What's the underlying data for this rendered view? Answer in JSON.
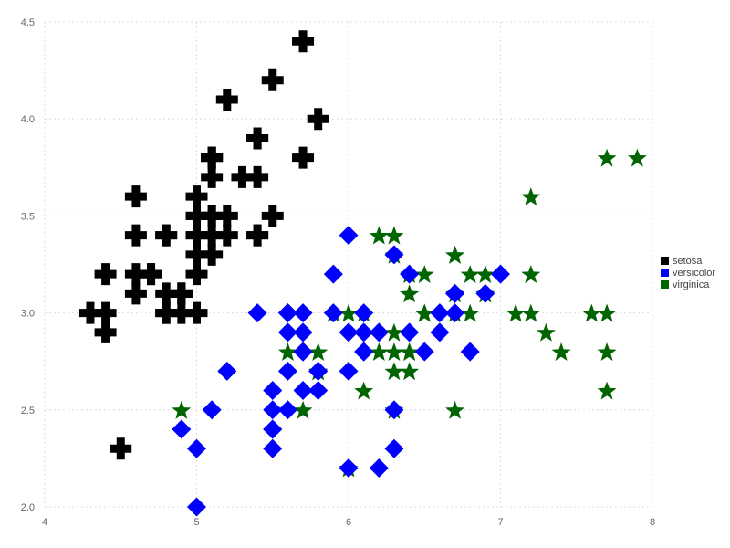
{
  "chart_data": {
    "type": "scatter",
    "title": "",
    "xlabel": "",
    "ylabel": "",
    "xlim": [
      4,
      8
    ],
    "ylim": [
      2.0,
      4.5
    ],
    "x_ticks": [
      "4",
      "5",
      "6",
      "7",
      "8"
    ],
    "y_ticks": [
      "2.0",
      "2.5",
      "3.0",
      "3.5",
      "4.0",
      "4.5"
    ],
    "grid": true,
    "legend_position": "right",
    "series": [
      {
        "name": "setosa",
        "color": "#000000",
        "marker": "cross",
        "points": [
          [
            5.1,
            3.5
          ],
          [
            4.9,
            3.0
          ],
          [
            4.7,
            3.2
          ],
          [
            4.6,
            3.1
          ],
          [
            5.0,
            3.6
          ],
          [
            5.4,
            3.9
          ],
          [
            4.6,
            3.4
          ],
          [
            5.0,
            3.4
          ],
          [
            4.4,
            2.9
          ],
          [
            4.9,
            3.1
          ],
          [
            5.4,
            3.7
          ],
          [
            4.8,
            3.4
          ],
          [
            4.8,
            3.0
          ],
          [
            4.3,
            3.0
          ],
          [
            5.8,
            4.0
          ],
          [
            5.7,
            4.4
          ],
          [
            5.4,
            3.9
          ],
          [
            5.1,
            3.5
          ],
          [
            5.7,
            3.8
          ],
          [
            5.1,
            3.8
          ],
          [
            5.4,
            3.4
          ],
          [
            5.1,
            3.7
          ],
          [
            4.6,
            3.6
          ],
          [
            5.1,
            3.3
          ],
          [
            4.8,
            3.4
          ],
          [
            5.0,
            3.0
          ],
          [
            5.0,
            3.4
          ],
          [
            5.2,
            3.5
          ],
          [
            5.2,
            3.4
          ],
          [
            4.7,
            3.2
          ],
          [
            4.8,
            3.1
          ],
          [
            5.4,
            3.4
          ],
          [
            5.2,
            4.1
          ],
          [
            5.5,
            4.2
          ],
          [
            4.9,
            3.1
          ],
          [
            5.0,
            3.2
          ],
          [
            5.5,
            3.5
          ],
          [
            4.9,
            3.1
          ],
          [
            4.4,
            3.0
          ],
          [
            5.1,
            3.4
          ],
          [
            5.0,
            3.5
          ],
          [
            4.5,
            2.3
          ],
          [
            4.4,
            3.2
          ],
          [
            5.0,
            3.5
          ],
          [
            5.1,
            3.8
          ],
          [
            4.8,
            3.0
          ],
          [
            5.1,
            3.8
          ],
          [
            4.6,
            3.2
          ],
          [
            5.3,
            3.7
          ],
          [
            5.0,
            3.3
          ]
        ]
      },
      {
        "name": "versicolor",
        "color": "#0000ff",
        "marker": "diamond",
        "points": [
          [
            7.0,
            3.2
          ],
          [
            6.4,
            3.2
          ],
          [
            6.9,
            3.1
          ],
          [
            5.5,
            2.3
          ],
          [
            6.5,
            2.8
          ],
          [
            5.7,
            2.8
          ],
          [
            6.3,
            3.3
          ],
          [
            4.9,
            2.4
          ],
          [
            6.6,
            2.9
          ],
          [
            5.2,
            2.7
          ],
          [
            5.0,
            2.0
          ],
          [
            5.9,
            3.0
          ],
          [
            6.0,
            2.2
          ],
          [
            6.1,
            2.9
          ],
          [
            5.6,
            2.9
          ],
          [
            6.7,
            3.1
          ],
          [
            5.6,
            3.0
          ],
          [
            5.8,
            2.7
          ],
          [
            6.2,
            2.2
          ],
          [
            5.6,
            2.5
          ],
          [
            5.9,
            3.2
          ],
          [
            6.1,
            2.8
          ],
          [
            6.3,
            2.5
          ],
          [
            6.1,
            2.8
          ],
          [
            6.4,
            2.9
          ],
          [
            6.6,
            3.0
          ],
          [
            6.8,
            2.8
          ],
          [
            6.7,
            3.0
          ],
          [
            6.0,
            2.9
          ],
          [
            5.7,
            2.6
          ],
          [
            5.5,
            2.4
          ],
          [
            5.5,
            2.4
          ],
          [
            5.8,
            2.7
          ],
          [
            6.0,
            2.7
          ],
          [
            5.4,
            3.0
          ],
          [
            6.0,
            3.4
          ],
          [
            6.7,
            3.1
          ],
          [
            6.3,
            2.3
          ],
          [
            5.6,
            3.0
          ],
          [
            5.5,
            2.5
          ],
          [
            5.5,
            2.6
          ],
          [
            6.1,
            3.0
          ],
          [
            5.8,
            2.6
          ],
          [
            5.0,
            2.3
          ],
          [
            5.6,
            2.7
          ],
          [
            5.7,
            3.0
          ],
          [
            5.7,
            2.9
          ],
          [
            6.2,
            2.9
          ],
          [
            5.1,
            2.5
          ],
          [
            5.7,
            2.8
          ]
        ]
      },
      {
        "name": "virginica",
        "color": "#006400",
        "marker": "star",
        "points": [
          [
            6.3,
            3.3
          ],
          [
            5.8,
            2.7
          ],
          [
            7.1,
            3.0
          ],
          [
            6.3,
            2.9
          ],
          [
            6.5,
            3.0
          ],
          [
            7.6,
            3.0
          ],
          [
            4.9,
            2.5
          ],
          [
            7.3,
            2.9
          ],
          [
            6.7,
            2.5
          ],
          [
            7.2,
            3.6
          ],
          [
            6.5,
            3.2
          ],
          [
            6.4,
            2.7
          ],
          [
            6.8,
            3.0
          ],
          [
            5.7,
            2.5
          ],
          [
            5.8,
            2.8
          ],
          [
            6.4,
            3.2
          ],
          [
            6.5,
            3.0
          ],
          [
            7.7,
            3.8
          ],
          [
            7.7,
            2.6
          ],
          [
            6.0,
            2.2
          ],
          [
            6.9,
            3.2
          ],
          [
            5.6,
            2.8
          ],
          [
            7.7,
            2.8
          ],
          [
            6.3,
            2.7
          ],
          [
            6.7,
            3.3
          ],
          [
            7.2,
            3.2
          ],
          [
            6.2,
            2.8
          ],
          [
            6.1,
            3.0
          ],
          [
            6.4,
            2.8
          ],
          [
            7.2,
            3.0
          ],
          [
            7.4,
            2.8
          ],
          [
            7.9,
            3.8
          ],
          [
            6.4,
            2.8
          ],
          [
            6.3,
            2.8
          ],
          [
            6.1,
            2.6
          ],
          [
            7.7,
            3.0
          ],
          [
            6.3,
            3.4
          ],
          [
            6.4,
            3.1
          ],
          [
            6.0,
            3.0
          ],
          [
            6.9,
            3.1
          ],
          [
            6.7,
            3.1
          ],
          [
            6.9,
            3.1
          ],
          [
            5.8,
            2.7
          ],
          [
            6.8,
            3.2
          ],
          [
            6.7,
            3.3
          ],
          [
            6.7,
            3.0
          ],
          [
            6.3,
            2.5
          ],
          [
            6.5,
            3.0
          ],
          [
            6.2,
            3.4
          ],
          [
            5.9,
            3.0
          ]
        ]
      }
    ]
  }
}
